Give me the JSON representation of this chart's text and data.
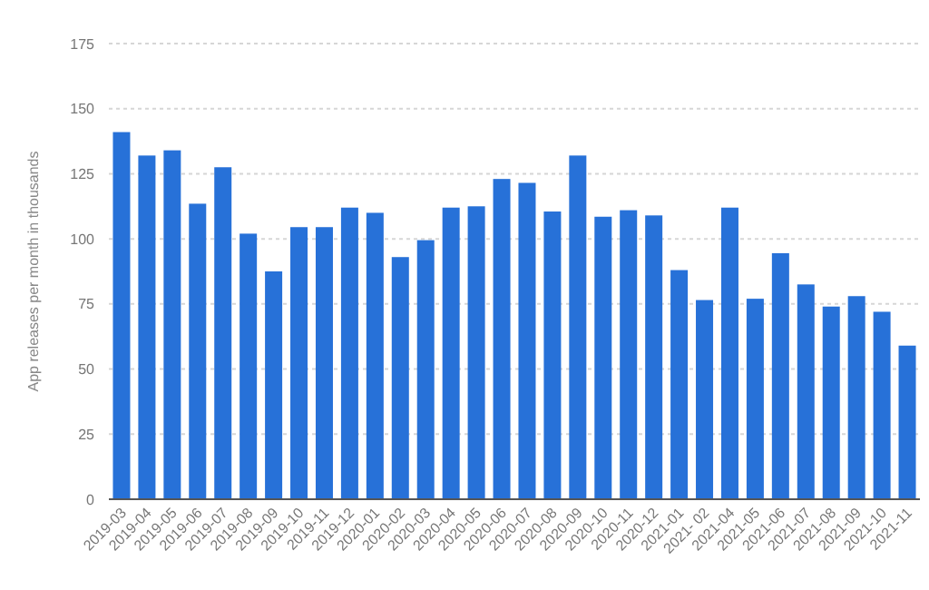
{
  "chart_data": {
    "type": "bar",
    "ylabel": "App releases per month in thousands",
    "categories": [
      "2019-03",
      "2019-04",
      "2019-05",
      "2019-06",
      "2019-07",
      "2019-08",
      "2019-09",
      "2019-10",
      "2019-11",
      "2019-12",
      "2020-01",
      "2020-02",
      "2020-03",
      "2020-04",
      "2020-05",
      "2020-06",
      "2020-07",
      "2020-08",
      "2020-09",
      "2020-10",
      "2020-11",
      "2020-12",
      "2021-01",
      "2021- 02",
      "2021-04",
      "2021-05",
      "2021-06",
      "2021-07",
      "2021-08",
      "2021-09",
      "2021-10",
      "2021-11"
    ],
    "values": [
      141,
      132,
      134,
      113.5,
      127.5,
      102,
      87.5,
      104.5,
      104.5,
      112,
      110,
      93,
      99.5,
      112,
      112.5,
      123,
      121.5,
      110.5,
      132,
      108.5,
      111,
      109,
      88,
      76.5,
      112,
      77,
      94.5,
      82.5,
      74,
      78,
      72,
      59
    ],
    "color": "#2771d8",
    "ylim": [
      0,
      175
    ],
    "yticks": [
      0,
      25,
      50,
      75,
      100,
      125,
      150,
      175
    ],
    "grid": "y"
  }
}
